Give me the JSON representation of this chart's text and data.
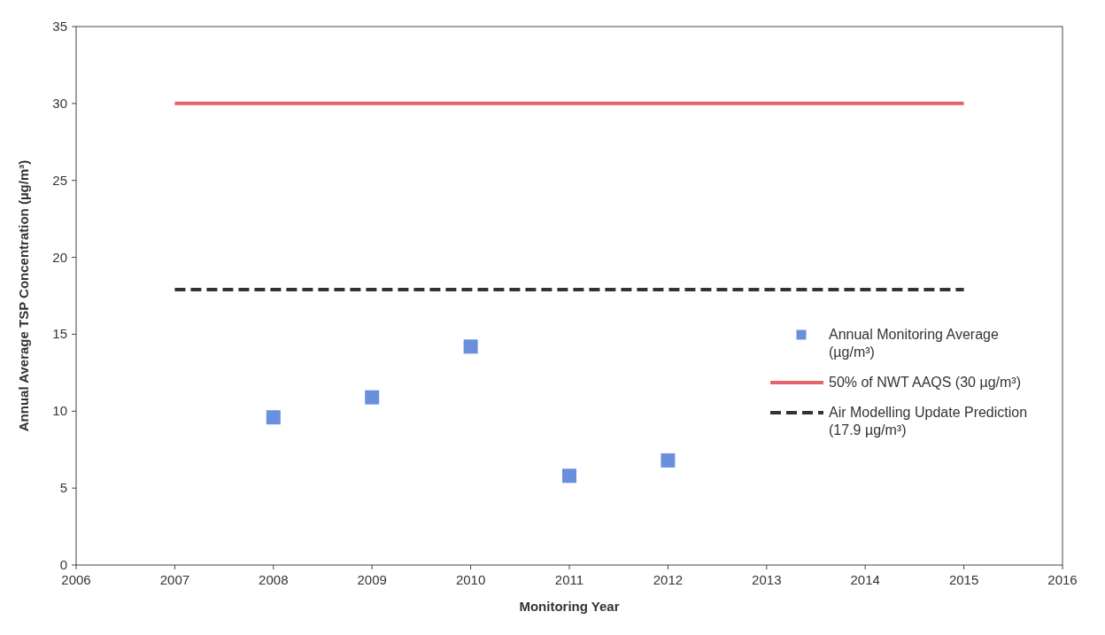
{
  "chart_data": {
    "type": "scatter",
    "xlabel": "Monitoring Year",
    "ylabel": "Annual Average TSP Concentration (µg/m³)",
    "xlim": [
      2006,
      2016
    ],
    "xticks": [
      2006,
      2007,
      2008,
      2009,
      2010,
      2011,
      2012,
      2013,
      2014,
      2015,
      2016
    ],
    "ylim": [
      0,
      35
    ],
    "yticks": [
      0,
      5,
      10,
      15,
      20,
      25,
      30,
      35
    ],
    "grid": false,
    "legend": "right",
    "series": [
      {
        "name": "Annual Monitoring Average (µg/m³)",
        "marker": "square",
        "color": "#6a8fdc",
        "x": [
          2008,
          2009,
          2010,
          2011,
          2012
        ],
        "values": [
          9.6,
          10.9,
          14.2,
          5.8,
          6.8
        ]
      },
      {
        "name": "50% of NWT AAQS (30 µg/m³)",
        "type": "line",
        "color": "#e8606a",
        "line_style": "solid",
        "x": [
          2007,
          2015
        ],
        "values": [
          30,
          30
        ]
      },
      {
        "name": "Air Modelling Update Prediction (17.9 µg/m³)",
        "type": "line",
        "color": "#333333",
        "line_style": "dashed",
        "x": [
          2007,
          2015
        ],
        "values": [
          17.9,
          17.9
        ]
      }
    ]
  }
}
